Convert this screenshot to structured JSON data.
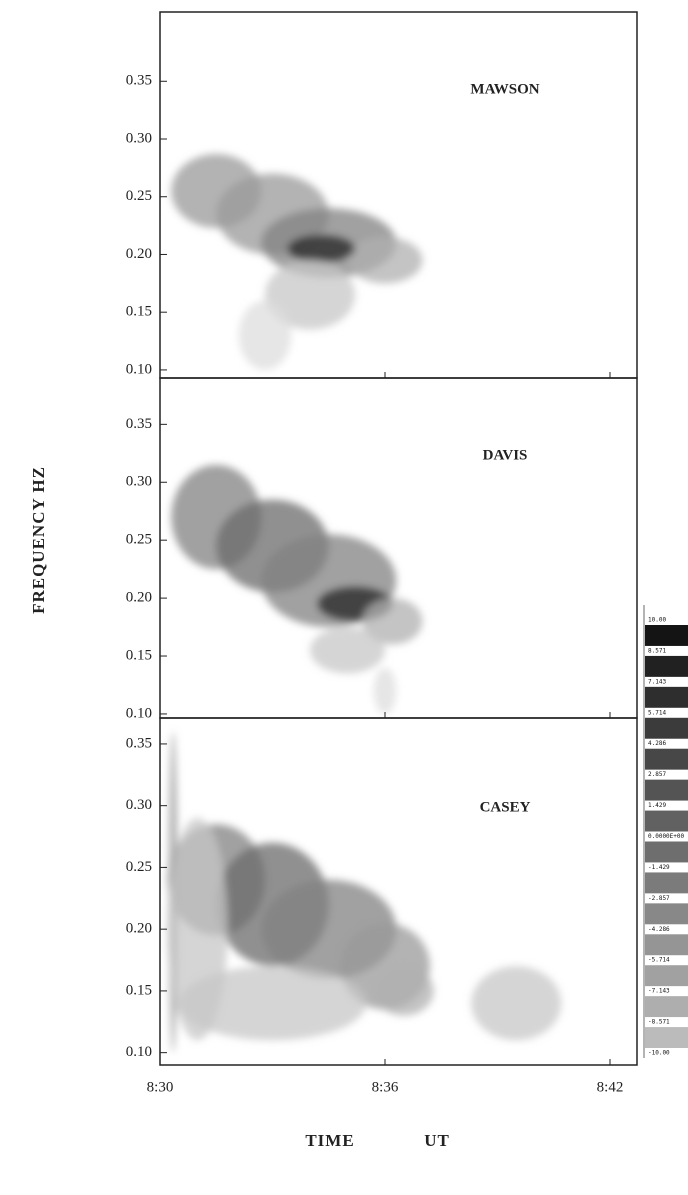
{
  "chart_data": {
    "type": "spectrogram",
    "y_label": "FREQUENCY  HZ",
    "x_label": "TIME",
    "x_unit": "UT",
    "xlim": [
      30,
      42.72
    ],
    "xticks": [
      {
        "value": 30,
        "label": "8:30"
      },
      {
        "value": 36,
        "label": "8:36"
      },
      {
        "value": 42,
        "label": "8:42"
      }
    ],
    "panels": [
      {
        "name": "MAWSON",
        "ylim": [
          0.093,
          0.41
        ],
        "yticks": [
          {
            "value": 0.1,
            "label": "0.10"
          },
          {
            "value": 0.15,
            "label": "0.15"
          },
          {
            "value": 0.2,
            "label": "0.20"
          },
          {
            "value": 0.25,
            "label": "0.25"
          },
          {
            "value": 0.3,
            "label": "0.30"
          },
          {
            "value": 0.35,
            "label": "0.35"
          }
        ],
        "blobs": [
          {
            "t": 31.5,
            "f": 0.255,
            "dt": 1.2,
            "df": 0.032,
            "level": 4
          },
          {
            "t": 33.0,
            "f": 0.235,
            "dt": 1.5,
            "df": 0.035,
            "level": 4
          },
          {
            "t": 34.5,
            "f": 0.21,
            "dt": 1.8,
            "df": 0.03,
            "level": 5
          },
          {
            "t": 36.0,
            "f": 0.195,
            "dt": 1.0,
            "df": 0.02,
            "level": 3
          },
          {
            "t": 34.3,
            "f": 0.205,
            "dt": 0.9,
            "df": 0.012,
            "level": 9
          },
          {
            "t": 34.0,
            "f": 0.165,
            "dt": 1.2,
            "df": 0.03,
            "level": 2
          },
          {
            "t": 32.8,
            "f": 0.13,
            "dt": 0.7,
            "df": 0.03,
            "level": 1
          }
        ]
      },
      {
        "name": "DAVIS",
        "ylim": [
          0.0965,
          0.39
        ],
        "yticks": [
          {
            "value": 0.1,
            "label": "0.10"
          },
          {
            "value": 0.15,
            "label": "0.15"
          },
          {
            "value": 0.2,
            "label": "0.20"
          },
          {
            "value": 0.25,
            "label": "0.25"
          },
          {
            "value": 0.3,
            "label": "0.30"
          },
          {
            "value": 0.35,
            "label": "0.35"
          }
        ],
        "blobs": [
          {
            "t": 31.5,
            "f": 0.27,
            "dt": 1.2,
            "df": 0.045,
            "level": 5
          },
          {
            "t": 33.0,
            "f": 0.245,
            "dt": 1.5,
            "df": 0.04,
            "level": 6
          },
          {
            "t": 34.5,
            "f": 0.215,
            "dt": 1.8,
            "df": 0.04,
            "level": 5
          },
          {
            "t": 35.2,
            "f": 0.195,
            "dt": 1.0,
            "df": 0.015,
            "level": 9
          },
          {
            "t": 36.2,
            "f": 0.18,
            "dt": 0.8,
            "df": 0.02,
            "level": 3
          },
          {
            "t": 35.0,
            "f": 0.155,
            "dt": 1.0,
            "df": 0.02,
            "level": 2
          },
          {
            "t": 36.0,
            "f": 0.12,
            "dt": 0.3,
            "df": 0.02,
            "level": 1
          }
        ]
      },
      {
        "name": "CASEY",
        "ylim": [
          0.09,
          0.371
        ],
        "yticks": [
          {
            "value": 0.1,
            "label": "0.10"
          },
          {
            "value": 0.15,
            "label": "0.15"
          },
          {
            "value": 0.2,
            "label": "0.20"
          },
          {
            "value": 0.25,
            "label": "0.25"
          },
          {
            "value": 0.3,
            "label": "0.30"
          },
          {
            "value": 0.35,
            "label": "0.35"
          }
        ],
        "blobs": [
          {
            "t": 31.5,
            "f": 0.24,
            "dt": 1.3,
            "df": 0.045,
            "level": 5
          },
          {
            "t": 33.0,
            "f": 0.22,
            "dt": 1.5,
            "df": 0.05,
            "level": 6
          },
          {
            "t": 34.5,
            "f": 0.2,
            "dt": 1.8,
            "df": 0.04,
            "level": 5
          },
          {
            "t": 36.0,
            "f": 0.17,
            "dt": 1.2,
            "df": 0.035,
            "level": 4
          },
          {
            "t": 36.5,
            "f": 0.15,
            "dt": 0.8,
            "df": 0.02,
            "level": 3
          },
          {
            "t": 33.0,
            "f": 0.14,
            "dt": 2.5,
            "df": 0.03,
            "level": 2
          },
          {
            "t": 39.5,
            "f": 0.14,
            "dt": 1.2,
            "df": 0.03,
            "level": 2
          },
          {
            "t": 30.35,
            "f": 0.23,
            "dt": 0.12,
            "df": 0.13,
            "level": 4
          },
          {
            "t": 31.0,
            "f": 0.2,
            "dt": 0.8,
            "df": 0.09,
            "level": 2
          }
        ]
      }
    ],
    "colorbar": [
      {
        "value": 10,
        "label": "10.00"
      },
      {
        "value": 8.571,
        "label": "8.571"
      },
      {
        "value": 7.143,
        "label": "7.143"
      },
      {
        "value": 5.714,
        "label": "5.714"
      },
      {
        "value": 4.286,
        "label": "4.286"
      },
      {
        "value": 2.857,
        "label": "2.857"
      },
      {
        "value": 1.429,
        "label": "1.429"
      },
      {
        "value": 0,
        "label": "0.0000E+00"
      },
      {
        "value": -1.429,
        "label": "-1.429"
      },
      {
        "value": -2.857,
        "label": "-2.857"
      },
      {
        "value": -4.286,
        "label": "-4.286"
      },
      {
        "value": -5.714,
        "label": "-5.714"
      },
      {
        "value": -7.143,
        "label": "-7.143"
      },
      {
        "value": -8.571,
        "label": "-8.571"
      },
      {
        "value": -10,
        "label": "-10.00"
      }
    ]
  }
}
